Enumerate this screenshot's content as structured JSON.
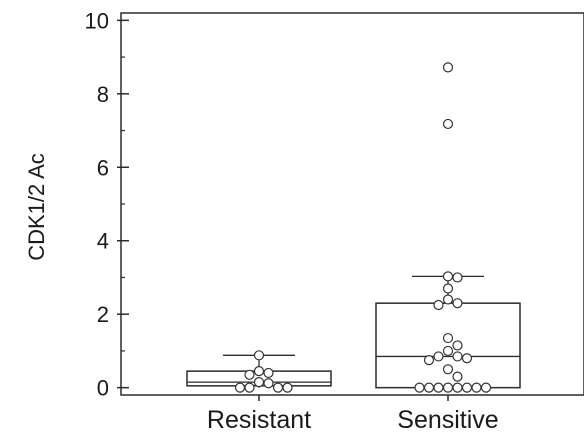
{
  "chart_data": {
    "type": "box",
    "title": "",
    "xlabel": "",
    "ylabel": "CDK1/2 Ac",
    "ylim": [
      -0.2,
      10.2
    ],
    "yticks": [
      "0",
      "2",
      "4",
      "6",
      "8",
      "10"
    ],
    "categories": [
      "Resistant",
      "Sensitive"
    ],
    "grid": false,
    "series": [
      {
        "category": "Resistant",
        "box": {
          "q1": 0.05,
          "median": 0.15,
          "q3": 0.45,
          "whisker_low": 0.0,
          "whisker_high": 0.88
        },
        "points": [
          0.88,
          0.45,
          0.4,
          0.35,
          0.15,
          0.12,
          0.0,
          0.0,
          0.0,
          0.0
        ]
      },
      {
        "category": "Sensitive",
        "box": {
          "q1": 0.0,
          "median": 0.85,
          "q3": 2.3,
          "whisker_low": 0.0,
          "whisker_high": 3.03
        },
        "points": [
          8.72,
          7.18,
          3.03,
          3.0,
          2.7,
          2.4,
          2.3,
          2.25,
          1.35,
          1.15,
          1.0,
          0.85,
          0.85,
          0.8,
          0.75,
          0.5,
          0.3,
          0.0,
          0.0,
          0.0,
          0.0,
          0.0,
          0.0,
          0.0,
          0.0
        ]
      }
    ]
  }
}
